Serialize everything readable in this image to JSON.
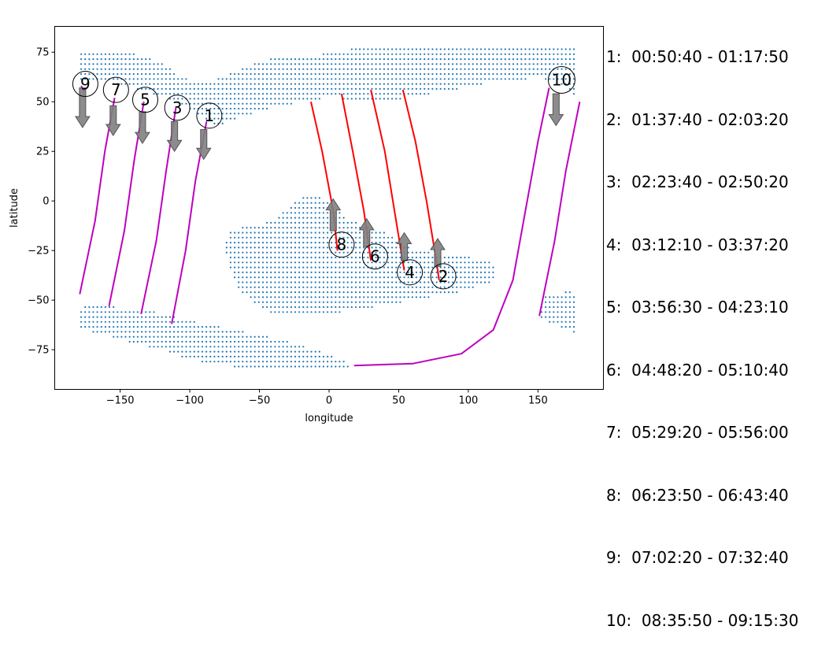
{
  "chart_data": {
    "type": "scatter",
    "title": "",
    "xlabel": "longitude",
    "ylabel": "latitude",
    "xlim": [
      -197,
      197
    ],
    "ylim": [
      -95,
      88
    ],
    "xticks": [
      -150,
      -100,
      -50,
      0,
      50,
      100,
      150
    ],
    "yticks": [
      -75,
      -50,
      -25,
      0,
      25,
      50,
      75
    ],
    "grid": false,
    "colors": {
      "land_dots": "#1f77b4",
      "ascending_track": "#bf00bf",
      "descending_track": "#ff0000",
      "arrow": "#808080"
    },
    "tracks": [
      {
        "id": "1",
        "label": "1",
        "direction": "down",
        "color": "ascending",
        "points": [
          [
            -113,
            -62
          ],
          [
            -103,
            -25
          ],
          [
            -96,
            10
          ],
          [
            -88,
            40
          ]
        ]
      },
      {
        "id": "3",
        "label": "3",
        "direction": "down",
        "color": "ascending",
        "points": [
          [
            -135,
            -57
          ],
          [
            -124,
            -20
          ],
          [
            -117,
            15
          ],
          [
            -110,
            47
          ]
        ]
      },
      {
        "id": "5",
        "label": "5",
        "direction": "down",
        "color": "ascending",
        "points": [
          [
            -158,
            -53
          ],
          [
            -147,
            -15
          ],
          [
            -140,
            20
          ],
          [
            -133,
            50
          ]
        ]
      },
      {
        "id": "7",
        "label": "7",
        "direction": "down",
        "color": "ascending",
        "points": [
          [
            -179,
            -47
          ],
          [
            -168,
            -10
          ],
          [
            -161,
            25
          ],
          [
            -154,
            52
          ]
        ]
      },
      {
        "id": "9",
        "label": "9",
        "direction": "down",
        "color": "ascending",
        "points": [
          [
            -178,
            58
          ],
          [
            -176,
            55
          ]
        ]
      },
      {
        "id": "10",
        "label": "10",
        "direction": "down",
        "color": "ascending",
        "points": [
          [
            18,
            -83
          ],
          [
            60,
            -82
          ],
          [
            95,
            -77
          ],
          [
            118,
            -65
          ],
          [
            132,
            -40
          ],
          [
            141,
            -5
          ],
          [
            150,
            30
          ],
          [
            158,
            57
          ]
        ]
      },
      {
        "id": "10b",
        "label": "",
        "direction": "",
        "color": "ascending",
        "points": [
          [
            151,
            -58
          ],
          [
            162,
            -20
          ],
          [
            170,
            15
          ],
          [
            180,
            50
          ]
        ]
      },
      {
        "id": "2",
        "label": "2",
        "direction": "up",
        "color": "descending",
        "points": [
          [
            53,
            56
          ],
          [
            62,
            30
          ],
          [
            70,
            0
          ],
          [
            77,
            -30
          ],
          [
            79,
            -40
          ]
        ]
      },
      {
        "id": "4",
        "label": "4",
        "direction": "up",
        "color": "descending",
        "points": [
          [
            30,
            56
          ],
          [
            40,
            25
          ],
          [
            47,
            -5
          ],
          [
            54,
            -35
          ]
        ]
      },
      {
        "id": "6",
        "label": "6",
        "direction": "up",
        "color": "descending",
        "points": [
          [
            9,
            54
          ],
          [
            17,
            25
          ],
          [
            25,
            -5
          ],
          [
            30,
            -30
          ]
        ]
      },
      {
        "id": "8",
        "label": "8",
        "direction": "up",
        "color": "descending",
        "points": [
          [
            -13,
            50
          ],
          [
            -5,
            25
          ],
          [
            3,
            -5
          ],
          [
            6,
            -25
          ]
        ]
      }
    ],
    "markers": [
      {
        "label": "1",
        "x": -86,
        "y": 43
      },
      {
        "label": "2",
        "x": 82,
        "y": -38
      },
      {
        "label": "3",
        "x": -109,
        "y": 47
      },
      {
        "label": "4",
        "x": 58,
        "y": -36
      },
      {
        "label": "5",
        "x": -132,
        "y": 51
      },
      {
        "label": "6",
        "x": 33,
        "y": -28
      },
      {
        "label": "7",
        "x": -153,
        "y": 56
      },
      {
        "label": "8",
        "x": 9,
        "y": -22
      },
      {
        "label": "9",
        "x": -175,
        "y": 59
      },
      {
        "label": "10",
        "x": 167,
        "y": 61
      }
    ],
    "arrows": [
      {
        "x": -177,
        "y_from": 57,
        "y_to": 37
      },
      {
        "x": -155,
        "y_from": 48,
        "y_to": 33
      },
      {
        "x": -134,
        "y_from": 45,
        "y_to": 29
      },
      {
        "x": -111,
        "y_from": 40,
        "y_to": 25
      },
      {
        "x": -90,
        "y_from": 36,
        "y_to": 21
      },
      {
        "x": 163,
        "y_from": 54,
        "y_to": 38
      },
      {
        "x": 3,
        "y_from": -15,
        "y_to": 1
      },
      {
        "x": 27,
        "y_from": -23,
        "y_to": -9
      },
      {
        "x": 54,
        "y_from": -30,
        "y_to": -16
      },
      {
        "x": 78,
        "y_from": -33,
        "y_to": -19
      }
    ],
    "legend_entries": [
      "1:  00:50:40 - 01:17:50",
      "2:  01:37:40 - 02:03:20",
      "3:  02:23:40 - 02:50:20",
      "4:  03:12:10 - 03:37:20",
      "5:  03:56:30 - 04:23:10",
      "6:  04:48:20 - 05:10:40",
      "7:  05:29:20 - 05:56:00",
      "8:  06:23:50 - 06:43:40",
      "9:  07:02:20 - 07:32:40",
      "10:  08:35:50 - 09:15:30"
    ]
  }
}
